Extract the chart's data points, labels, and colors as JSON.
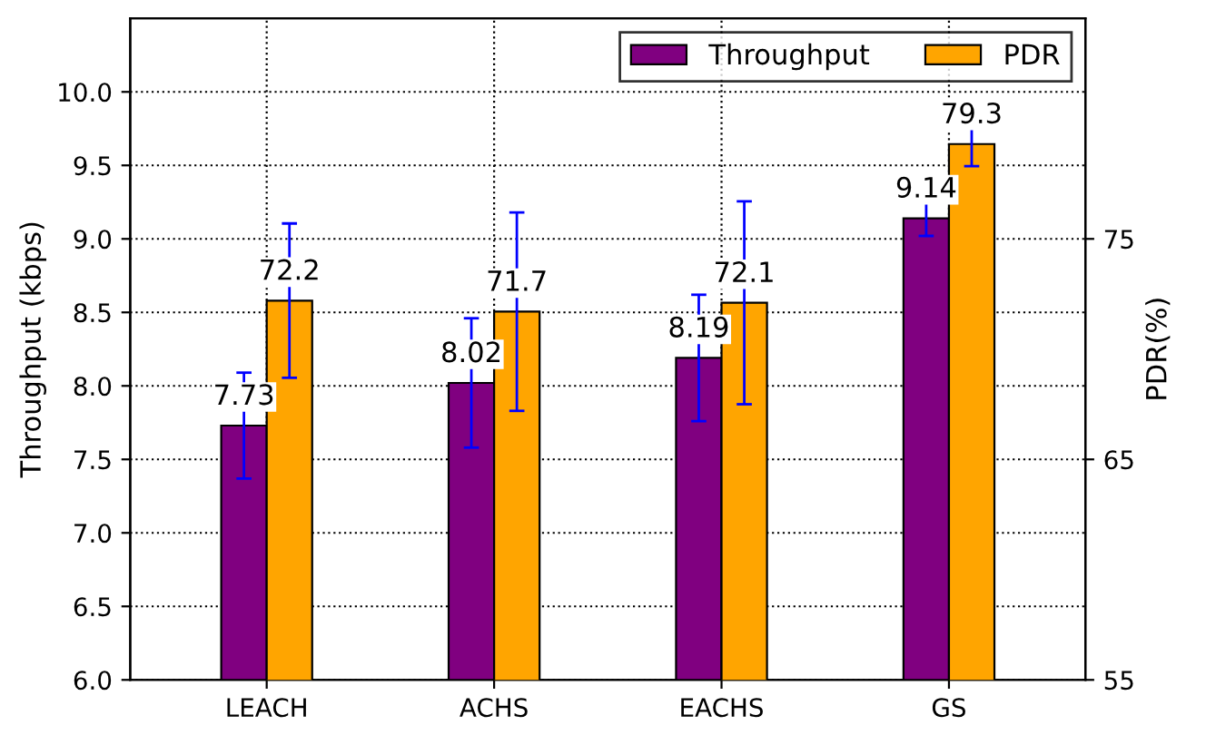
{
  "chart_data": {
    "type": "bar",
    "categories": [
      "LEACH",
      "ACHS",
      "EACHS",
      "GS"
    ],
    "ylabel": "Throughput (kbps)",
    "y2label": "PDR(%)",
    "series": [
      {
        "name": "Throughput",
        "color": "#800080",
        "values": [
          7.73,
          8.02,
          8.19,
          9.14
        ],
        "errors": [
          0.36,
          0.44,
          0.43,
          0.12
        ]
      },
      {
        "name": "PDR",
        "color": "#ffa500",
        "axis": "y2",
        "values": [
          72.2,
          71.7,
          72.1,
          79.3
        ],
        "errors": [
          3.5,
          4.5,
          4.6,
          1.0
        ]
      }
    ],
    "ylim": [
      6.0,
      10.5
    ],
    "yticks": [
      {
        "value": 6.0,
        "label": "6.0"
      },
      {
        "value": 6.5,
        "label": "6.5"
      },
      {
        "value": 7.0,
        "label": "7.0"
      },
      {
        "value": 7.5,
        "label": "7.5"
      },
      {
        "value": 8.0,
        "label": "8.0"
      },
      {
        "value": 8.5,
        "label": "8.5"
      },
      {
        "value": 9.0,
        "label": "9.0"
      },
      {
        "value": 9.5,
        "label": "9.5"
      },
      {
        "value": 10.0,
        "label": "10.0"
      }
    ],
    "y2lim": [
      55,
      85
    ],
    "y2ticks": [
      55,
      65,
      75
    ],
    "data_labels": true,
    "grid": true,
    "legend": "top right"
  }
}
